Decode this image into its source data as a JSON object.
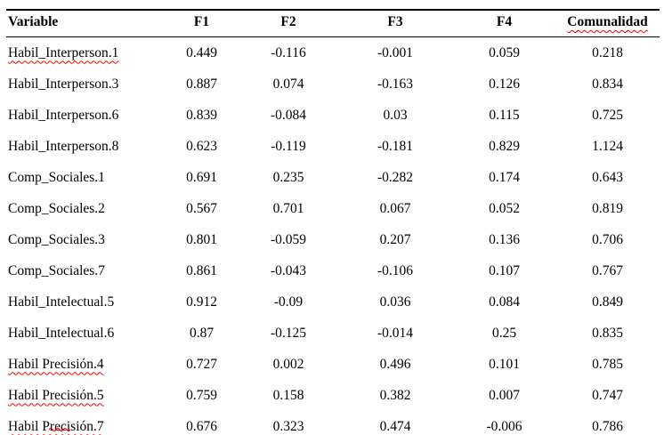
{
  "colors": {
    "spellcheck_underline": "#ff0000",
    "table_rule": "#000000",
    "background": "#ffffff"
  },
  "table": {
    "headers": [
      {
        "label": "Variable",
        "misspelled": false
      },
      {
        "label": "F1",
        "misspelled": false
      },
      {
        "label": "F2",
        "misspelled": false
      },
      {
        "label": "F3",
        "misspelled": false
      },
      {
        "label": "F4",
        "misspelled": false
      },
      {
        "label": "Comunalidad",
        "misspelled": true
      }
    ],
    "rows": [
      {
        "variable": "Habil_Interperson.1",
        "misspelled": true,
        "values": [
          "0.449",
          "-0.116",
          "-0.001",
          "0.059",
          "0.218"
        ]
      },
      {
        "variable": "Habil_Interperson.3",
        "misspelled": false,
        "values": [
          "0.887",
          "0.074",
          "-0.163",
          "0.126",
          "0.834"
        ]
      },
      {
        "variable": "Habil_Interperson.6",
        "misspelled": false,
        "values": [
          "0.839",
          "-0.084",
          "0.03",
          "0.115",
          "0.725"
        ]
      },
      {
        "variable": "Habil_Interperson.8",
        "misspelled": false,
        "values": [
          "0.623",
          "-0.119",
          "-0.181",
          "0.829",
          "1.124"
        ]
      },
      {
        "variable": "Comp_Sociales.1",
        "misspelled": false,
        "values": [
          "0.691",
          "0.235",
          "-0.282",
          "0.174",
          "0.643"
        ]
      },
      {
        "variable": "Comp_Sociales.2",
        "misspelled": false,
        "values": [
          "0.567",
          "0.701",
          "0.067",
          "0.052",
          "0.819"
        ]
      },
      {
        "variable": "Comp_Sociales.3",
        "misspelled": false,
        "values": [
          "0.801",
          "-0.059",
          "0.207",
          "0.136",
          "0.706"
        ]
      },
      {
        "variable": "Comp_Sociales.7",
        "misspelled": false,
        "values": [
          "0.861",
          "-0.043",
          "-0.106",
          "0.107",
          "0.767"
        ]
      },
      {
        "variable": "Habil_Intelectual.5",
        "misspelled": false,
        "values": [
          "0.912",
          "-0.09",
          "0.036",
          "0.084",
          "0.849"
        ]
      },
      {
        "variable": "Habil_Intelectual.6",
        "misspelled": false,
        "values": [
          "0.87",
          "-0.125",
          "-0.014",
          "0.25",
          "0.835"
        ]
      },
      {
        "variable": "Habil Precisión.4",
        "misspelled": true,
        "values": [
          "0.727",
          "0.002",
          "0.496",
          "0.101",
          "0.785"
        ]
      },
      {
        "variable": "Habil Precisión.5",
        "misspelled": true,
        "values": [
          "0.759",
          "0.158",
          "0.382",
          "0.007",
          "0.747"
        ]
      },
      {
        "variable": "Habil Precisión.7",
        "misspelled": true,
        "values": [
          "0.676",
          "0.323",
          "0.474",
          "-0.006",
          "0.786"
        ]
      }
    ]
  }
}
